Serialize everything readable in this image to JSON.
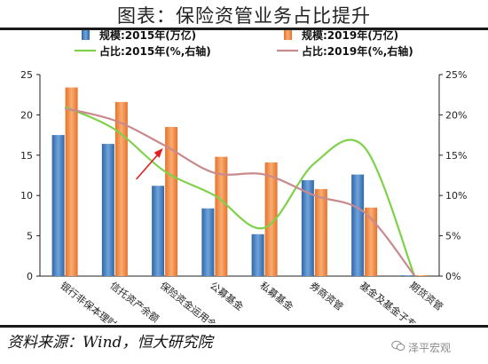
{
  "header": {
    "title": "图表：保险资管业务占比提升"
  },
  "footer": {
    "source": "资料来源：Wind，恒大研究院",
    "watermark": "泽平宏观"
  },
  "chart_data": {
    "type": "bar",
    "title": "图表：保险资管业务占比提升",
    "categories": [
      "银行非保本理财",
      "信托资产余额",
      "保险资金运用余额",
      "公募基金",
      "私募基金",
      "券商资管",
      "基金及基金子专户",
      "期货资管"
    ],
    "series": [
      {
        "name": "规模:2015年(万亿)",
        "type": "bar",
        "axis": "left",
        "color": "#3a76b3",
        "values": [
          17.5,
          16.4,
          11.2,
          8.4,
          5.2,
          11.9,
          12.6,
          0.1
        ]
      },
      {
        "name": "规模:2019年(万亿)",
        "type": "bar",
        "axis": "left",
        "color": "#f0883a",
        "values": [
          23.4,
          21.6,
          18.5,
          14.8,
          14.1,
          10.8,
          8.5,
          0.1
        ]
      },
      {
        "name": "占比:2015年(%,右轴)",
        "type": "line",
        "axis": "right",
        "color": "#7fd14a",
        "values": [
          21,
          18.2,
          13,
          10,
          6,
          14,
          16,
          0.1
        ]
      },
      {
        "name": "占比:2019年(%,右轴)",
        "type": "line",
        "axis": "right",
        "color": "#c98a8e",
        "values": [
          20.8,
          19.3,
          16.2,
          12.8,
          12.6,
          10,
          7.9,
          0.1
        ]
      }
    ],
    "ylim": [
      0,
      25
    ],
    "yticks": [
      "0",
      "5",
      "10",
      "15",
      "20",
      "25"
    ],
    "y2lim": [
      0,
      25
    ],
    "y2ticks": [
      "0%",
      "5%",
      "10%",
      "15%",
      "20%",
      "25%"
    ],
    "legend": "top, two rows",
    "annotation": "red arrow pointing at 保险资金运用余额 2019 share",
    "grid": false
  }
}
